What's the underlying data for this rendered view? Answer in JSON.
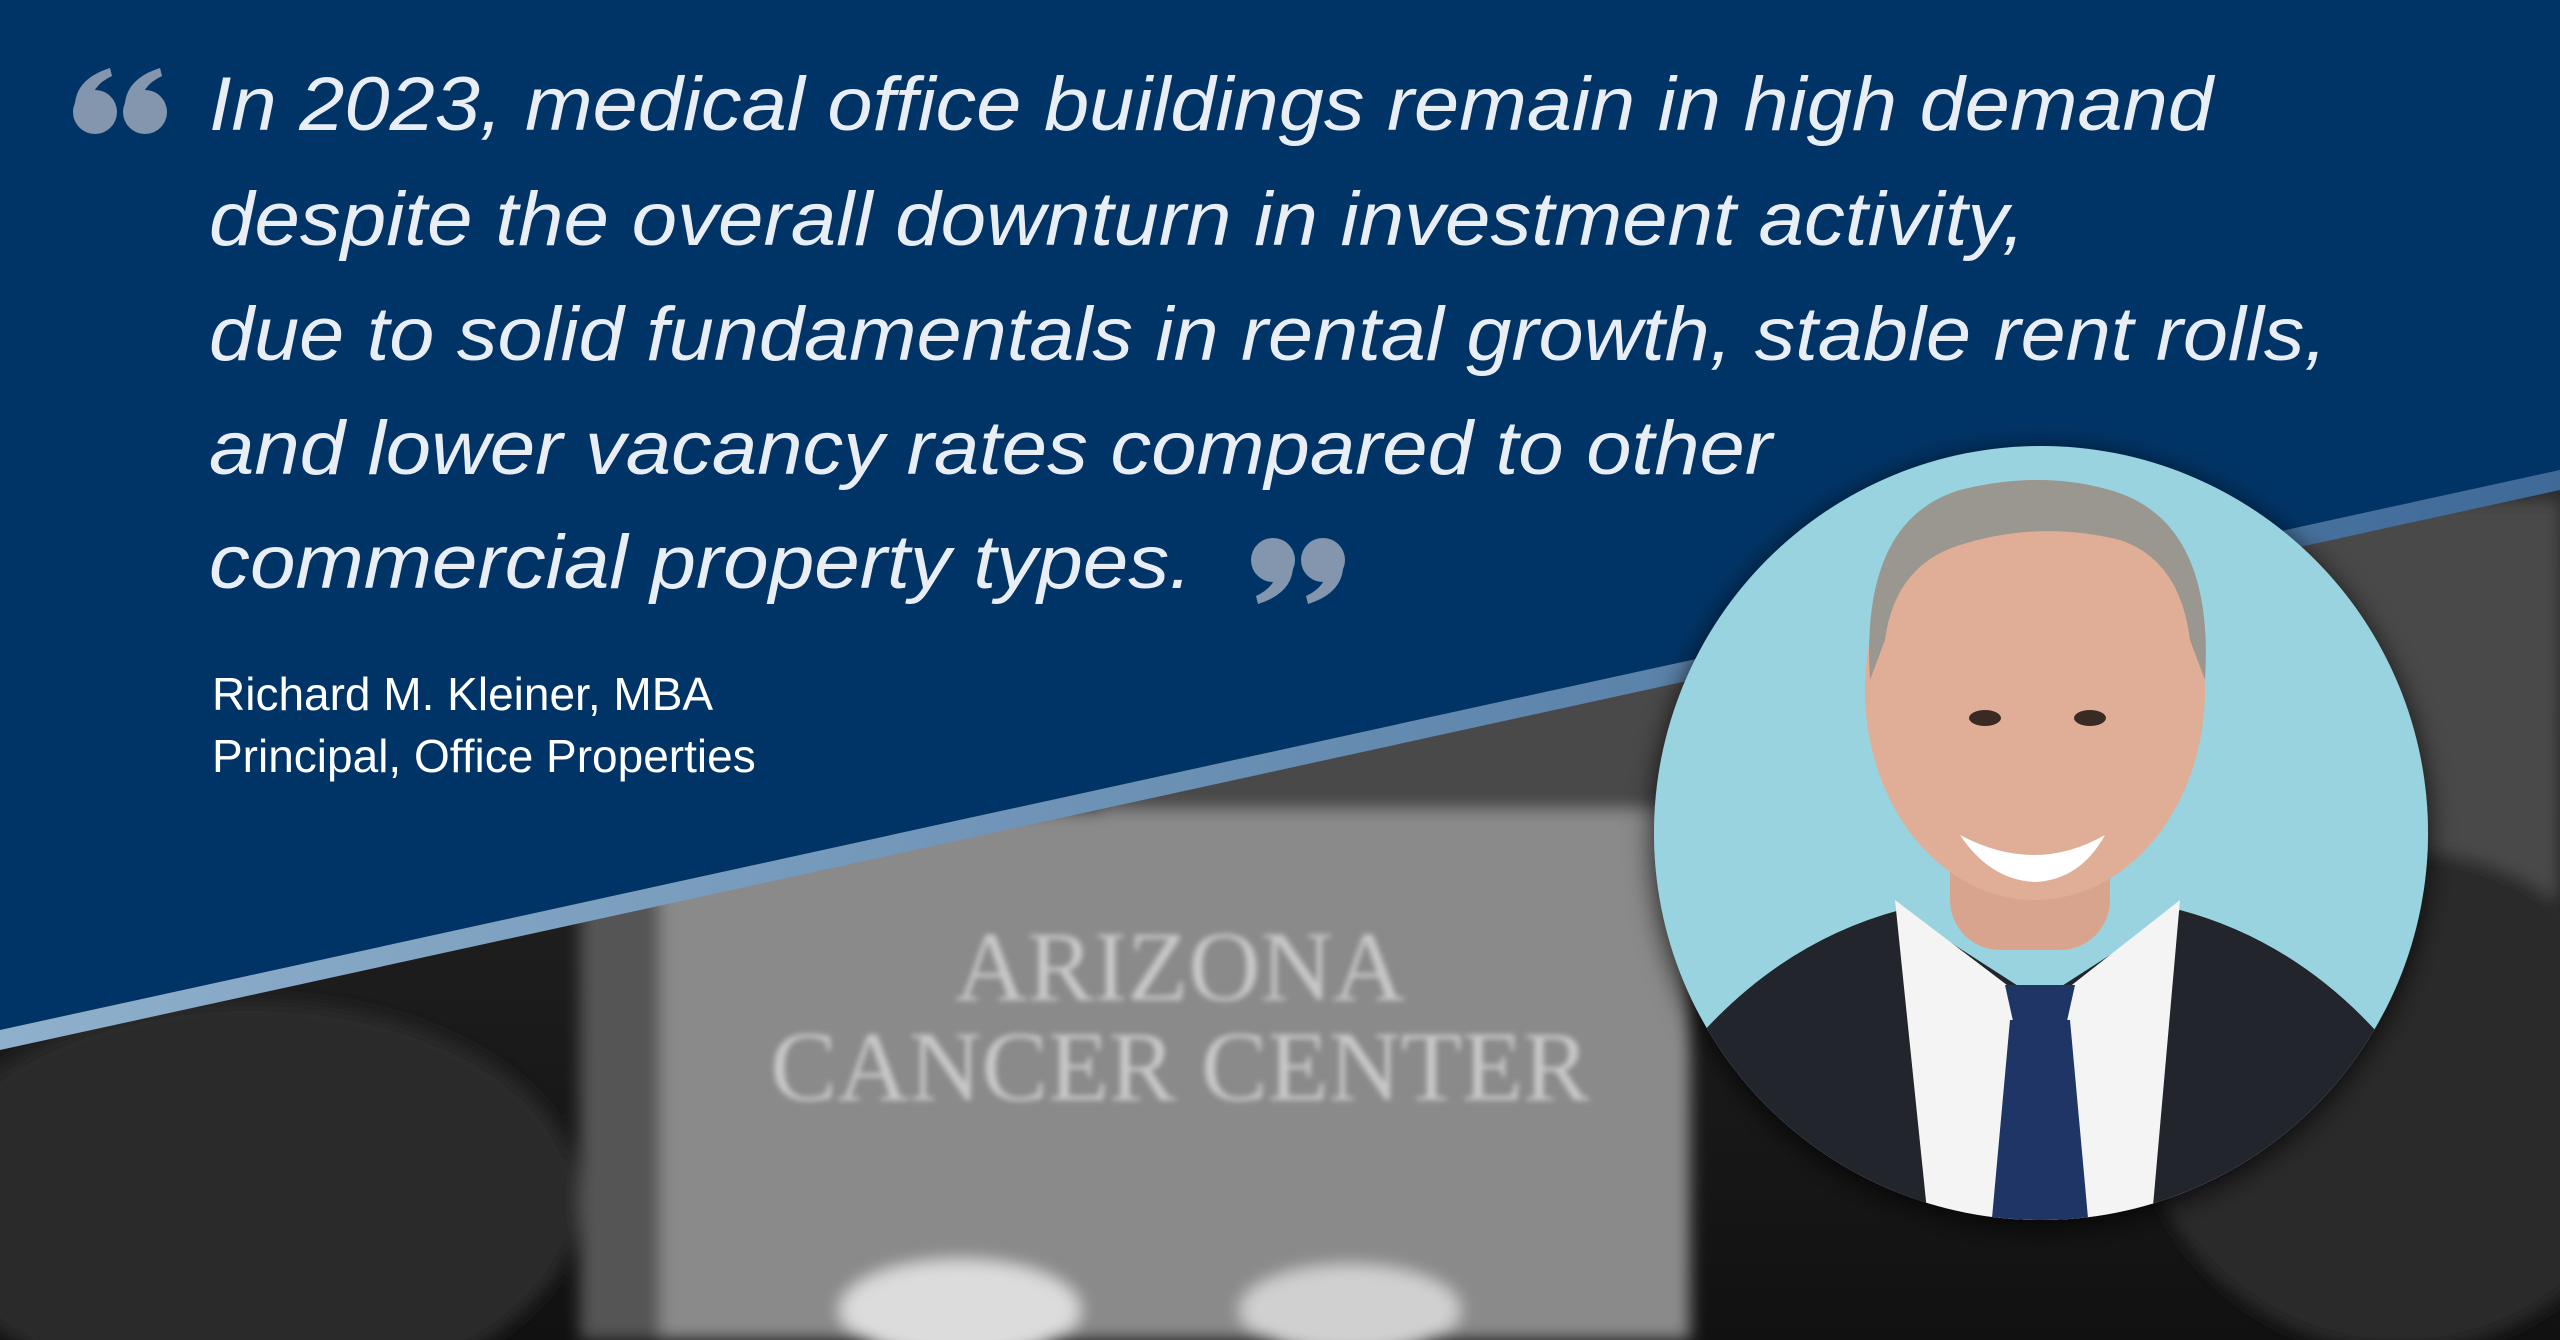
{
  "quote": {
    "lines": [
      "In 2023, medical office buildings remain in high demand",
      "despite the overall downturn in investment activity,",
      "due to solid fundamentals in rental growth, stable rent rolls,",
      "and lower vacancy rates compared to other",
      "commercial property types."
    ]
  },
  "author": {
    "name": "Richard M. Kleiner, MBA",
    "title": "Principal, Office Properties"
  },
  "background_sign": {
    "lines": [
      "ARIZONA",
      "CANCER CENTER"
    ]
  }
}
